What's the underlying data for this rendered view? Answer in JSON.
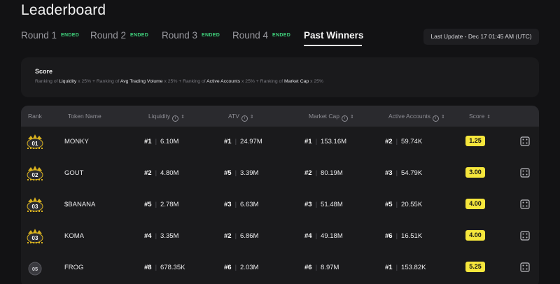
{
  "page": {
    "title": "Leaderboard"
  },
  "tabs": [
    {
      "label": "Round 1",
      "badge": "ENDED"
    },
    {
      "label": "Round 2",
      "badge": "ENDED"
    },
    {
      "label": "Round 3",
      "badge": "ENDED"
    },
    {
      "label": "Round 4",
      "badge": "ENDED"
    },
    {
      "label": "Past Winners",
      "badge": ""
    }
  ],
  "last_update": "Last Update - Dec 17 01:45 AM (UTC)",
  "score_card": {
    "title": "Score",
    "formula": {
      "p1": "Ranking of",
      "m1": "Liquidity",
      "w1": "x 25% +",
      "p2": "Ranking of",
      "m2": "Avg Trading Volume",
      "w2": "x 25% +",
      "p3": "Ranking of",
      "m3": "Active Accounts",
      "w3": "x 25% +",
      "p4": "Ranking of",
      "m4": "Market Cap",
      "w4": "x  25%"
    }
  },
  "table": {
    "headers": {
      "rank": "Rank",
      "token": "Token Name",
      "liquidity": "Liquidity",
      "atv": "ATV",
      "market_cap": "Market Cap",
      "active_accounts": "Active Accounts",
      "score": "Score"
    },
    "rows": [
      {
        "badge": "01",
        "token": "MONKY",
        "liq_rank": "#1",
        "liq": "6.10M",
        "atv_rank": "#1",
        "atv": "24.97M",
        "mc_rank": "#1",
        "mc": "153.16M",
        "aa_rank": "#2",
        "aa": "59.74K",
        "score": "1.25"
      },
      {
        "badge": "02",
        "token": "GOUT",
        "liq_rank": "#2",
        "liq": "4.80M",
        "atv_rank": "#5",
        "atv": "3.39M",
        "mc_rank": "#2",
        "mc": "80.19M",
        "aa_rank": "#3",
        "aa": "54.79K",
        "score": "3.00"
      },
      {
        "badge": "03",
        "token": "$BANANA",
        "liq_rank": "#5",
        "liq": "2.78M",
        "atv_rank": "#3",
        "atv": "6.63M",
        "mc_rank": "#3",
        "mc": "51.48M",
        "aa_rank": "#5",
        "aa": "20.55K",
        "score": "4.00"
      },
      {
        "badge": "03",
        "token": "KOMA",
        "liq_rank": "#4",
        "liq": "3.35M",
        "atv_rank": "#2",
        "atv": "6.86M",
        "mc_rank": "#4",
        "mc": "49.18M",
        "aa_rank": "#6",
        "aa": "16.51K",
        "score": "4.00"
      },
      {
        "badge": "05",
        "token": "FROG",
        "liq_rank": "#8",
        "liq": "678.35K",
        "atv_rank": "#6",
        "atv": "2.03M",
        "mc_rank": "#6",
        "mc": "8.97M",
        "aa_rank": "#1",
        "aa": "153.82K",
        "score": "5.25"
      }
    ]
  },
  "colors": {
    "accent": "#f5e63c",
    "badge_green": "#3fd17c",
    "background": "#121214"
  },
  "icons": {
    "info": "info-icon",
    "sort": "sort-icon",
    "action": "dice-icon",
    "rank_badge": "crown-badge-icon"
  }
}
